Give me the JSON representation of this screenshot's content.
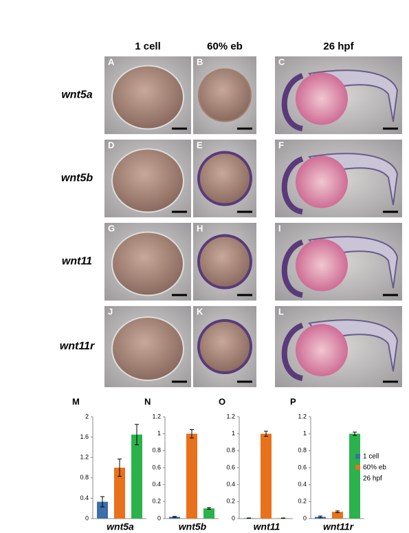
{
  "columns": [
    "1 cell",
    "60% eb",
    "26 hpf"
  ],
  "rows": [
    {
      "label": "wnt5a",
      "panels": [
        "A",
        "B",
        "C"
      ]
    },
    {
      "label": "wnt5b",
      "panels": [
        "D",
        "E",
        "F"
      ]
    },
    {
      "label": "wnt11",
      "panels": [
        "G",
        "H",
        "I"
      ]
    },
    {
      "label": "wnt11r",
      "panels": [
        "J",
        "K",
        "L"
      ]
    }
  ],
  "legend": {
    "names": [
      "1 cell",
      "60% eb",
      "26 hpf"
    ],
    "colors": [
      "#3c6ea8",
      "#e8711c",
      "#2bb24c"
    ]
  },
  "chart_data": [
    {
      "type": "bar",
      "panel": "M",
      "xlabel": "wnt5a",
      "values": [
        0.33,
        1.0,
        1.65
      ],
      "errors": [
        0.1,
        0.17,
        0.2
      ],
      "ylim": [
        0,
        2
      ],
      "yticks": [
        0,
        0.4,
        0.8,
        1.2,
        1.6,
        2
      ]
    },
    {
      "type": "bar",
      "panel": "N",
      "xlabel": "wnt5b",
      "values": [
        0.02,
        1.0,
        0.12
      ],
      "errors": [
        0.005,
        0.05,
        0.01
      ],
      "ylim": [
        0,
        1.2
      ],
      "yticks": [
        0,
        0.2,
        0.4,
        0.6,
        0.8,
        1,
        1.2
      ]
    },
    {
      "type": "bar",
      "panel": "O",
      "xlabel": "wnt11",
      "values": [
        0.005,
        1.0,
        0.005
      ],
      "errors": [
        0.002,
        0.03,
        0.002
      ],
      "ylim": [
        0,
        1.2
      ],
      "yticks": [
        0,
        0.2,
        0.4,
        0.6,
        0.8,
        1,
        1.2
      ]
    },
    {
      "type": "bar",
      "panel": "P",
      "xlabel": "wnt11r",
      "values": [
        0.02,
        0.08,
        1.0
      ],
      "errors": [
        0.01,
        0.01,
        0.02
      ],
      "ylim": [
        0,
        1.2
      ],
      "yticks": [
        0,
        0.2,
        0.4,
        0.6,
        0.8,
        1,
        1.2
      ]
    }
  ]
}
